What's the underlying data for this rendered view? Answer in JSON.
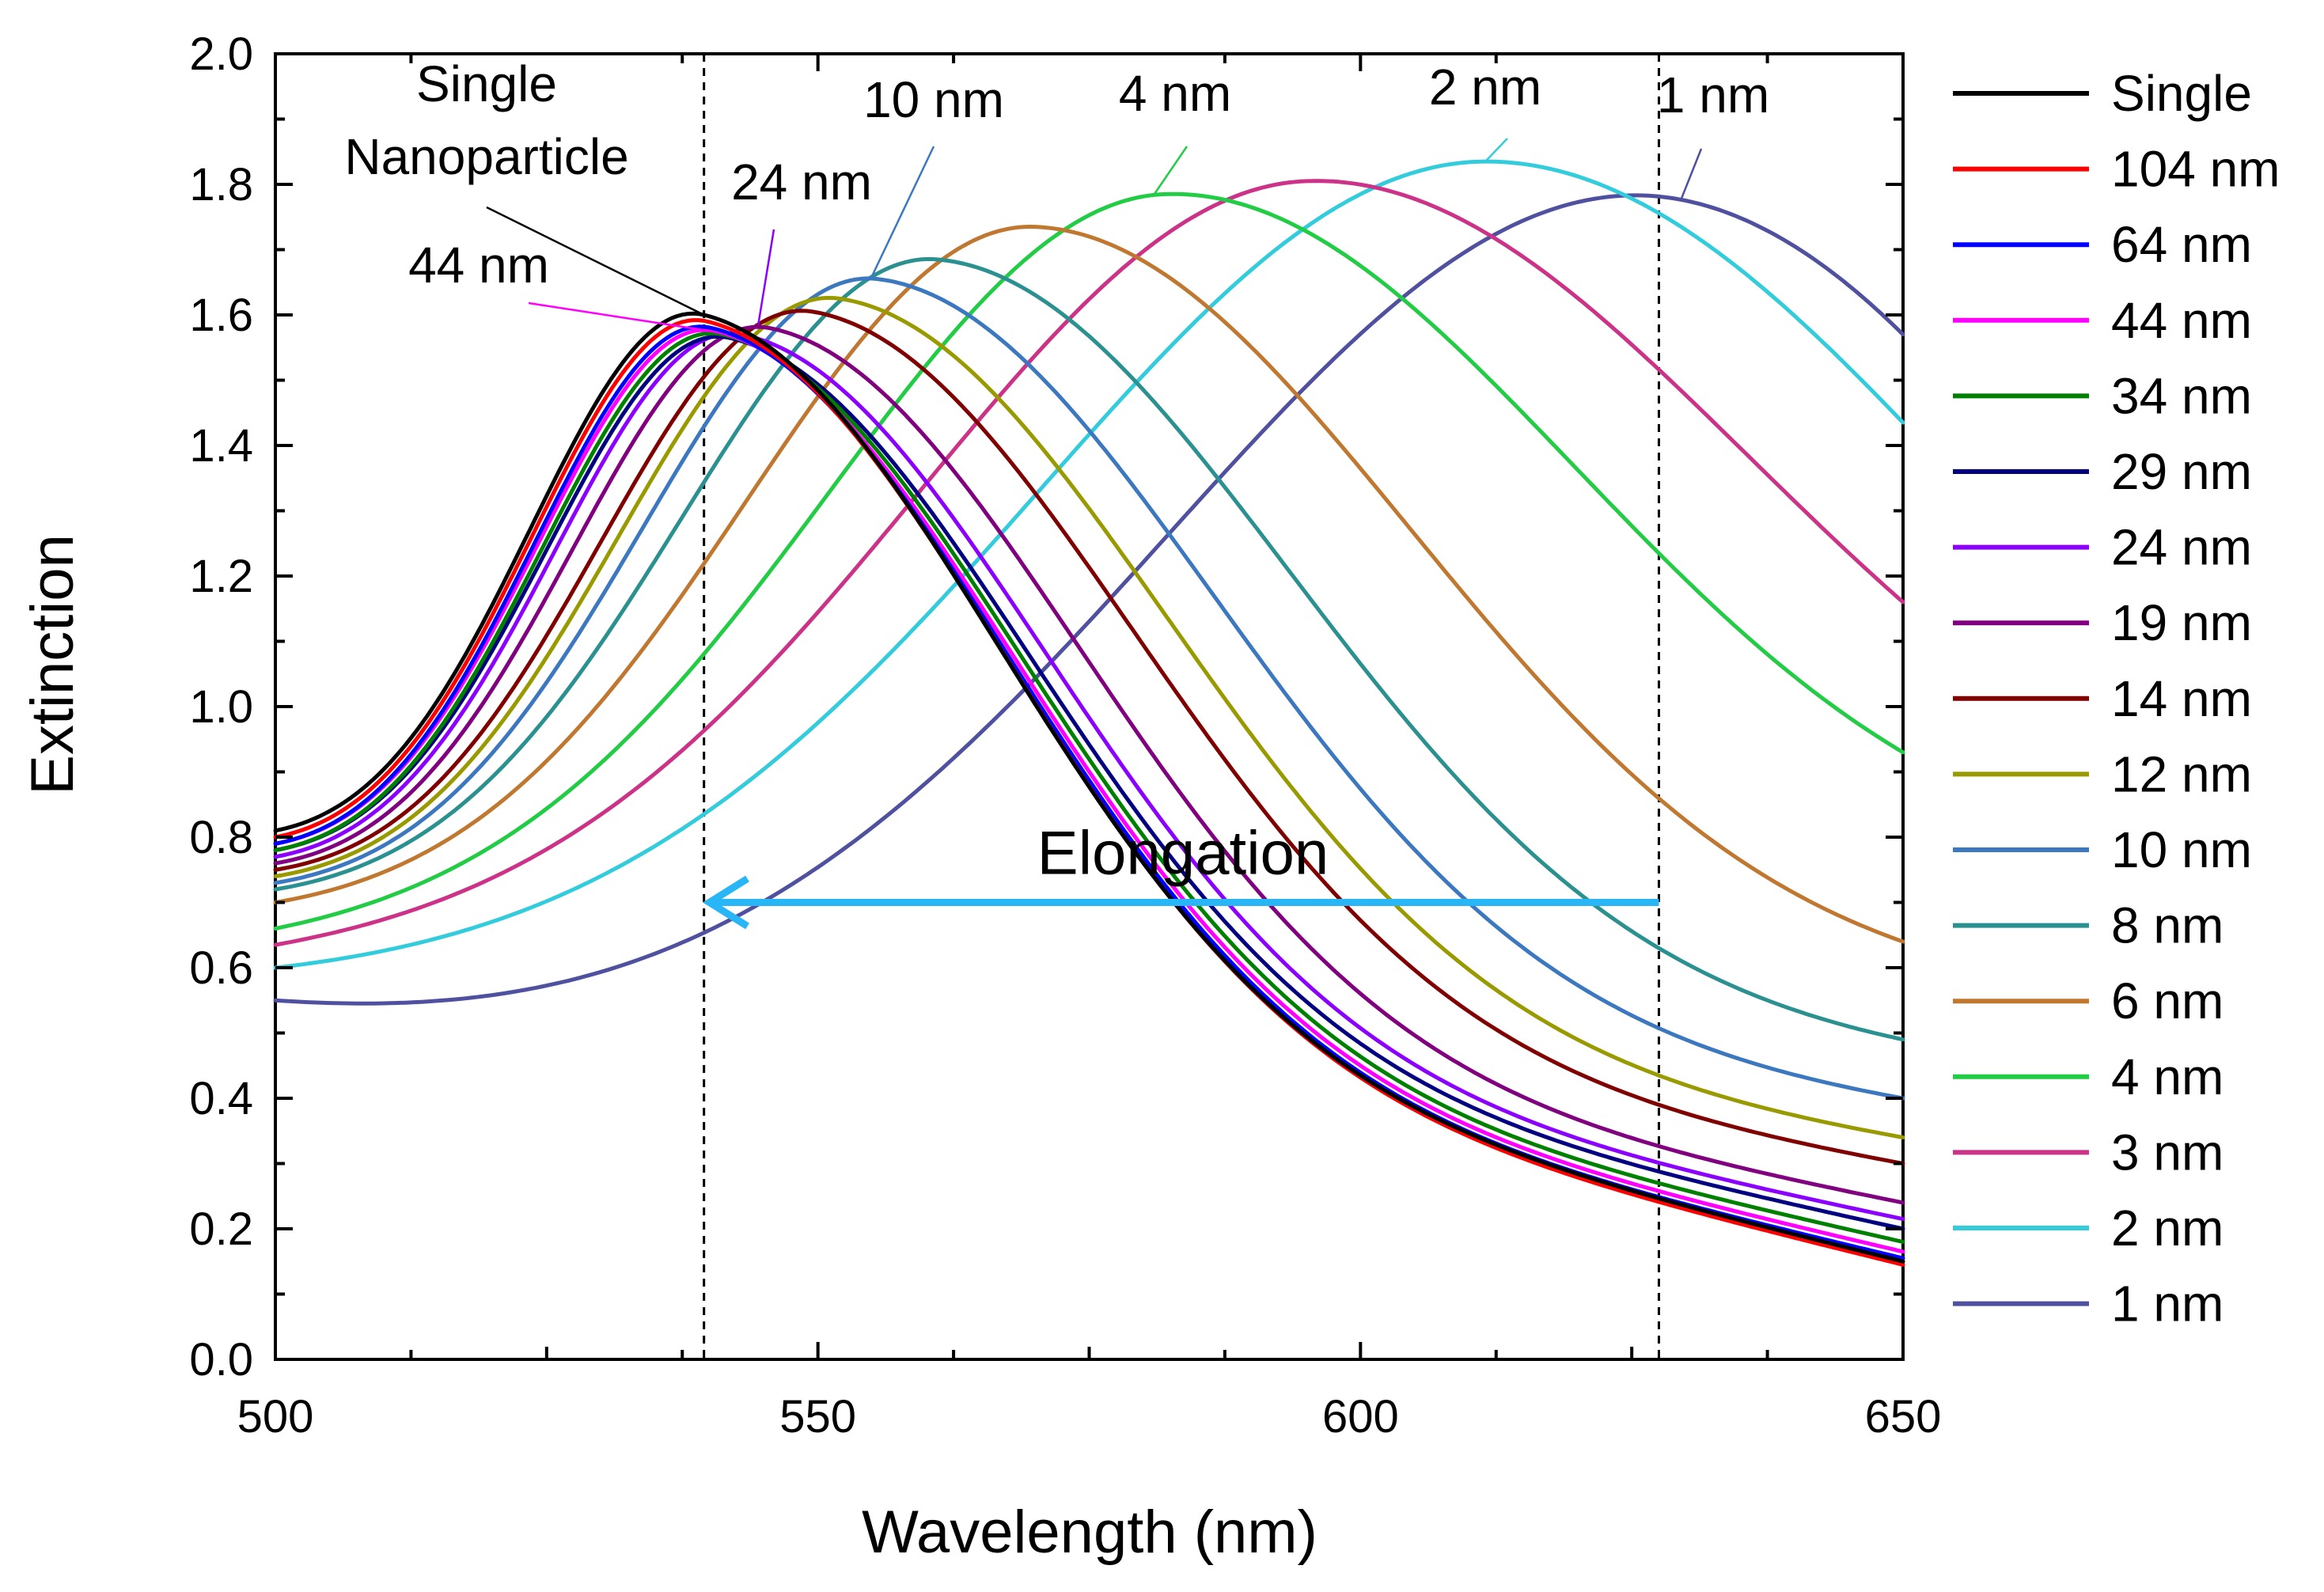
{
  "chart_data": {
    "type": "line",
    "title": "",
    "xlabel": "Wavelength (nm)",
    "ylabel": "Extinction",
    "xlim": [
      500,
      650
    ],
    "ylim": [
      0.0,
      2.0
    ],
    "x_ticks": [
      500,
      550,
      600,
      650
    ],
    "x_tick_labels": [
      "500",
      "550",
      "600",
      "650"
    ],
    "y_ticks": [
      0.0,
      0.2,
      0.4,
      0.6,
      0.8,
      1.0,
      1.2,
      1.4,
      1.6,
      1.8,
      2.0
    ],
    "y_tick_labels": [
      "0.0",
      "0.2",
      "0.4",
      "0.6",
      "0.8",
      "1.0",
      "1.2",
      "1.4",
      "1.6",
      "1.8",
      "2.0"
    ],
    "legend_position": "right-outside",
    "series": [
      {
        "name": "Single",
        "color": "#000000",
        "peak_x": 539.5,
        "peak_y": 1.6,
        "y_start": 0.81,
        "y_end": 0.15
      },
      {
        "name": "104 nm",
        "color": "#ff0000",
        "peak_x": 539.8,
        "peak_y": 1.59,
        "y_start": 0.8,
        "y_end": 0.145
      },
      {
        "name": "64 nm",
        "color": "#0000ff",
        "peak_x": 540.2,
        "peak_y": 1.58,
        "y_start": 0.79,
        "y_end": 0.155
      },
      {
        "name": "44 nm",
        "color": "#ff00ff",
        "peak_x": 540.6,
        "peak_y": 1.575,
        "y_start": 0.79,
        "y_end": 0.165
      },
      {
        "name": "34 nm",
        "color": "#008000",
        "peak_x": 541.2,
        "peak_y": 1.57,
        "y_start": 0.78,
        "y_end": 0.18
      },
      {
        "name": "29 nm",
        "color": "#000080",
        "peak_x": 541.8,
        "peak_y": 1.565,
        "y_start": 0.78,
        "y_end": 0.2
      },
      {
        "name": "24 nm",
        "color": "#8b00ff",
        "peak_x": 543.0,
        "peak_y": 1.57,
        "y_start": 0.77,
        "y_end": 0.215
      },
      {
        "name": "19 nm",
        "color": "#800080",
        "peak_x": 545.5,
        "peak_y": 1.58,
        "y_start": 0.76,
        "y_end": 0.24
      },
      {
        "name": "14 nm",
        "color": "#800000",
        "peak_x": 549.5,
        "peak_y": 1.605,
        "y_start": 0.75,
        "y_end": 0.3
      },
      {
        "name": "12 nm",
        "color": "#999900",
        "peak_x": 552.0,
        "peak_y": 1.625,
        "y_start": 0.74,
        "y_end": 0.34
      },
      {
        "name": "10 nm",
        "color": "#3c78c0",
        "peak_x": 555.5,
        "peak_y": 1.655,
        "y_start": 0.73,
        "y_end": 0.4
      },
      {
        "name": "8 nm",
        "color": "#2a9090",
        "peak_x": 561.0,
        "peak_y": 1.685,
        "y_start": 0.72,
        "y_end": 0.49
      },
      {
        "name": "6 nm",
        "color": "#c07830",
        "peak_x": 570.0,
        "peak_y": 1.735,
        "y_start": 0.7,
        "y_end": 0.64
      },
      {
        "name": "4 nm",
        "color": "#22cc44",
        "peak_x": 582.0,
        "peak_y": 1.785,
        "y_start": 0.66,
        "y_end": 0.93
      },
      {
        "name": "3 nm",
        "color": "#cc3388",
        "peak_x": 595.0,
        "peak_y": 1.805,
        "y_start": 0.635,
        "y_end": 1.16
      },
      {
        "name": "2 nm",
        "color": "#33ccdd",
        "peak_x": 612.0,
        "peak_y": 1.835,
        "y_start": 0.6,
        "y_end": 1.435
      },
      {
        "name": "1 nm",
        "color": "#5050a0",
        "peak_x": 630.0,
        "peak_y": 1.775,
        "y_start": 0.55,
        "y_end": 1.57
      }
    ],
    "reference_lines_x": [
      539.5,
      627.5
    ],
    "annotations": [
      {
        "text_lines": [
          "Single",
          "Nanoparticle"
        ],
        "target_x": 539.5,
        "target_y": 1.6,
        "color": "#000000"
      },
      {
        "text_lines": [
          "44 nm"
        ],
        "target_x": 540.2,
        "target_y": 1.575,
        "color": "#ff00ff"
      },
      {
        "text_lines": [
          "24 nm"
        ],
        "target_x": 544.5,
        "target_y": 1.585,
        "color": "#8b00ff"
      },
      {
        "text_lines": [
          "10 nm"
        ],
        "target_x": 555.0,
        "target_y": 1.66,
        "color": "#3c78c0"
      },
      {
        "text_lines": [
          "4 nm"
        ],
        "target_x": 581.0,
        "target_y": 1.785,
        "color": "#22cc44"
      },
      {
        "text_lines": [
          "2 nm"
        ],
        "target_x": 611.5,
        "target_y": 1.835,
        "color": "#33ccdd"
      },
      {
        "text_lines": [
          "1 nm"
        ],
        "target_x": 629.5,
        "target_y": 1.775,
        "color": "#5050a0"
      }
    ],
    "arrow": {
      "label": "Elongation",
      "from_x": 627.5,
      "to_x": 540.0,
      "y": 0.7,
      "color": "#29b6f6"
    }
  }
}
